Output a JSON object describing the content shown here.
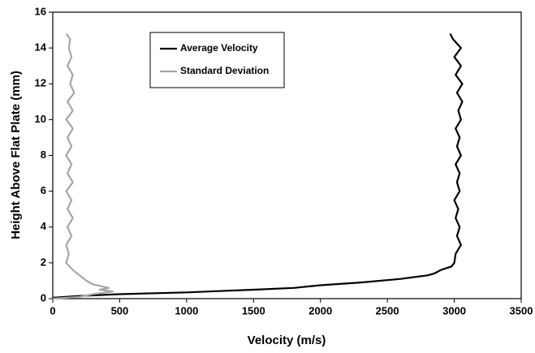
{
  "chart_data": {
    "type": "line",
    "xlabel": "Velocity (m/s)",
    "ylabel": "Height Above Flat Plate (mm)",
    "xlim": [
      0,
      3500
    ],
    "xticks": [
      0,
      500,
      1000,
      1500,
      2000,
      2500,
      3000,
      3500
    ],
    "ylim": [
      0,
      16
    ],
    "yticks": [
      0,
      2,
      4,
      6,
      8,
      10,
      12,
      14,
      16
    ],
    "grid": false,
    "legend": "upper left",
    "series": [
      {
        "name": "Average Velocity",
        "color": "#000000",
        "x": [
          0,
          200,
          500,
          1000,
          1500,
          1800,
          2000,
          2300,
          2600,
          2800,
          2850,
          2900,
          2980,
          3000,
          3010,
          3050,
          3020,
          3040,
          3010,
          3030,
          3000,
          3040,
          3020,
          3040,
          3010,
          3050,
          3020,
          3040,
          3010,
          3050,
          3030,
          3060,
          3020,
          3060,
          3010,
          3050,
          3000,
          3050,
          2990,
          2970
        ],
        "values": [
          0.05,
          0.15,
          0.25,
          0.35,
          0.5,
          0.6,
          0.75,
          0.9,
          1.1,
          1.3,
          1.4,
          1.6,
          1.8,
          2.0,
          2.5,
          3.0,
          3.5,
          4.0,
          4.5,
          5.0,
          5.5,
          6.0,
          6.5,
          7.0,
          7.5,
          8.0,
          8.5,
          9.0,
          9.5,
          10.0,
          10.5,
          11.0,
          11.5,
          12.0,
          12.5,
          13.0,
          13.5,
          14.0,
          14.5,
          14.8
        ]
      },
      {
        "name": "Standard Deviation",
        "color": "#a6a6a6",
        "x": [
          0,
          200,
          300,
          450,
          350,
          420,
          300,
          250,
          200,
          150,
          100,
          120,
          100,
          140,
          110,
          150,
          110,
          140,
          100,
          150,
          110,
          140,
          100,
          140,
          110,
          150,
          100,
          150,
          110,
          160,
          130,
          150,
          110,
          140,
          120,
          130,
          100
        ],
        "values": [
          0,
          0.1,
          0.25,
          0.4,
          0.5,
          0.6,
          0.8,
          1.0,
          1.3,
          1.6,
          2.0,
          2.5,
          3.0,
          3.5,
          4.0,
          4.5,
          5.0,
          5.5,
          6.0,
          6.5,
          7.0,
          7.5,
          8.0,
          8.5,
          9.0,
          9.5,
          10.0,
          10.5,
          11.0,
          11.5,
          12.0,
          12.5,
          13.0,
          13.5,
          14.0,
          14.5,
          14.8
        ]
      }
    ]
  }
}
